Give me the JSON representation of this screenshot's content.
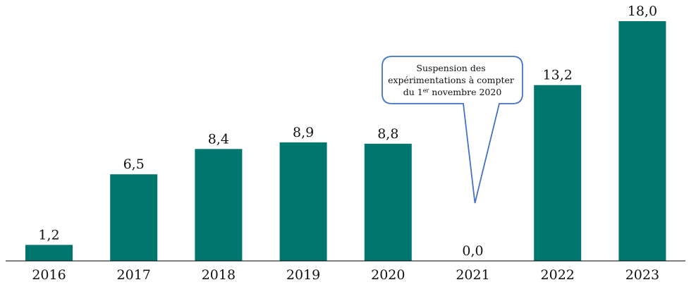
{
  "chart_data": {
    "type": "bar",
    "categories": [
      "2016",
      "2017",
      "2018",
      "2019",
      "2020",
      "2021",
      "2022",
      "2023"
    ],
    "values": [
      1.2,
      6.5,
      8.4,
      8.9,
      8.8,
      0.0,
      13.2,
      18.0
    ],
    "value_labels": [
      "1,2",
      "6,5",
      "8,4",
      "8,9",
      "8,8",
      "0,0",
      "13,2",
      "18,0"
    ],
    "title": "",
    "xlabel": "",
    "ylabel": "",
    "ylim": [
      0,
      18.0
    ],
    "grid": false,
    "legend": "none",
    "bar_color": "#00776e",
    "annotation": {
      "category": "2021",
      "line1": "Suspension des",
      "line2": "expérimentations à compter",
      "line3_prefix": "du 1",
      "line3_sup": "er",
      "line3_suffix": " novembre 2020",
      "border_color": "#4472c4"
    }
  }
}
